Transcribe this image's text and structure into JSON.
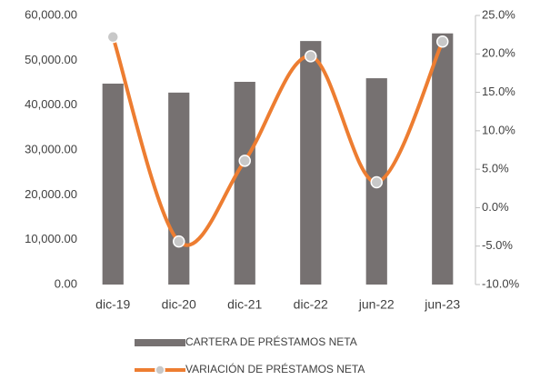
{
  "chart_data": {
    "type": "bar_line",
    "categories": [
      "dic-19",
      "dic-20",
      "dic-21",
      "dic-22",
      "jun-22",
      "jun-23"
    ],
    "series": [
      {
        "name": "CARTERA DE PRÉSTAMOS NETA",
        "type": "bar",
        "color": "#767171",
        "values": [
          44800,
          42800,
          45200,
          54300,
          46000,
          56000
        ]
      },
      {
        "name": "VARIACIÓN DE PRÉSTAMOS NETA",
        "type": "line",
        "axis": "y2",
        "color": "#ED7D31",
        "smooth": true,
        "values": [
          22.2,
          -4.4,
          6.1,
          19.7,
          3.3,
          21.6
        ]
      }
    ],
    "ylim": [
      0,
      60000
    ],
    "yticks": [
      {
        "value": 0,
        "label": "0.00"
      },
      {
        "value": 10000,
        "label": "10,000.00"
      },
      {
        "value": 20000,
        "label": "20,000.00"
      },
      {
        "value": 30000,
        "label": "30,000.00"
      },
      {
        "value": 40000,
        "label": "40,000.00"
      },
      {
        "value": 50000,
        "label": "50,000.00"
      },
      {
        "value": 60000,
        "label": "60,000.00"
      }
    ],
    "y2lim": [
      -10,
      25
    ],
    "y2ticks": [
      {
        "value": -10,
        "label": "-10.0%"
      },
      {
        "value": -5,
        "label": "-5.0%"
      },
      {
        "value": 0,
        "label": "0.0%"
      },
      {
        "value": 5,
        "label": "5.0%"
      },
      {
        "value": 10,
        "label": "10.0%"
      },
      {
        "value": 15,
        "label": "15.0%"
      },
      {
        "value": 20,
        "label": "20.0%"
      },
      {
        "value": 25,
        "label": "25.0%"
      }
    ],
    "legend": "bottom"
  }
}
